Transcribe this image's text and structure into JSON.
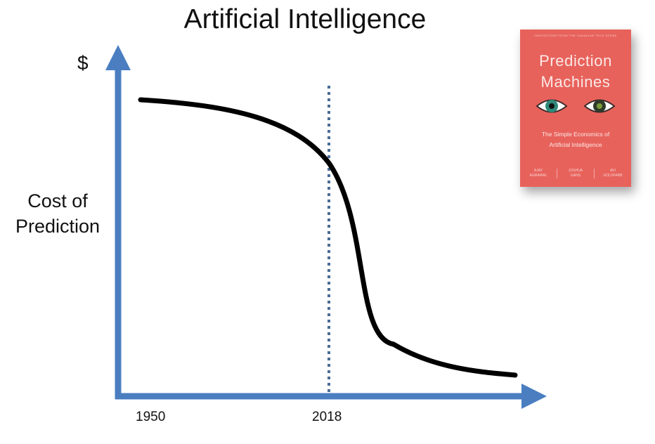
{
  "slide": {
    "title": "Artificial Intelligence"
  },
  "chart_data": {
    "type": "line",
    "title": "Artificial Intelligence",
    "ylabel_top": "$",
    "ylabel_lines": [
      "Cost of",
      "Prediction"
    ],
    "x_tick_labels": [
      "1950",
      "2018"
    ],
    "marker": {
      "label": "2018",
      "style": "dotted vertical line"
    },
    "series": [
      {
        "values": [
          [
            1950,
            1.0
          ],
          [
            1975,
            0.96
          ],
          [
            2000,
            0.85
          ],
          [
            2018,
            0.7
          ],
          [
            2024,
            0.55
          ],
          [
            2028,
            0.35
          ],
          [
            2035,
            0.18
          ],
          [
            2050,
            0.09
          ],
          [
            2080,
            0.02
          ]
        ]
      }
    ],
    "grid": false,
    "legend": "none"
  },
  "book": {
    "top_line": "INNOVATIONS FROM THE CANADIAN TECH SCENE",
    "title_lines": [
      "Prediction",
      "Machines"
    ],
    "subtitle_lines": [
      "The Simple Economics of",
      "Artificial Intelligence"
    ],
    "authors": [
      [
        "AJAY",
        "AGRAWAL"
      ],
      [
        "JOSHUA",
        "GANS"
      ],
      [
        "AVI",
        "GOLDFARB"
      ]
    ],
    "colors": {
      "cover": "#e8625c",
      "eye_left_iris": "#2f8a7a",
      "eye_right_iris": "#2e3a2a"
    }
  },
  "colors": {
    "axis": "#4a7ec1",
    "curve": "#000000",
    "marker": "#4a6c96"
  }
}
